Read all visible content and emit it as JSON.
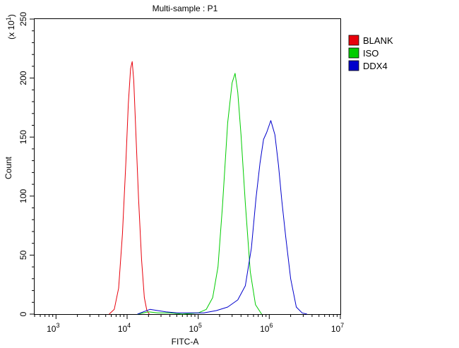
{
  "chart_data": {
    "type": "line",
    "title": "Multi-sample : P1",
    "xlabel": "FITC-A",
    "ylabel": "Count",
    "y_multiplier_label": "(x 10^1)",
    "x_scale": "log",
    "xlim": [
      500,
      10000000
    ],
    "ylim": [
      0,
      250
    ],
    "x_ticks": [
      {
        "value": 1000,
        "base": "10",
        "exp": "3"
      },
      {
        "value": 10000,
        "base": "10",
        "exp": "4"
      },
      {
        "value": 100000,
        "base": "10",
        "exp": "5"
      },
      {
        "value": 1000000,
        "base": "10",
        "exp": "6"
      },
      {
        "value": 10000000,
        "base": "10",
        "exp": "7"
      }
    ],
    "y_ticks": [
      0,
      50,
      100,
      150,
      200,
      250
    ],
    "grid": false,
    "legend_position": "right",
    "series": [
      {
        "name": "BLANK",
        "color": "#e8000b",
        "x": [
          5600,
          6600,
          7600,
          8600,
          9600,
          10400,
          11200,
          11800,
          12400,
          13200,
          14500,
          16000,
          17500,
          19000,
          20500
        ],
        "y": [
          0,
          4,
          22,
          68,
          128,
          178,
          208,
          214,
          198,
          158,
          98,
          46,
          14,
          3,
          0
        ]
      },
      {
        "name": "ISO",
        "color": "#00cc00",
        "x": [
          14000,
          20000,
          27000,
          40000,
          60000,
          100000,
          130000,
          160000,
          190000,
          220000,
          260000,
          300000,
          330000,
          360000,
          400000,
          460000,
          540000,
          640000,
          780000
        ],
        "y": [
          0,
          2,
          1,
          1,
          0,
          1,
          4,
          14,
          40,
          92,
          162,
          196,
          204,
          188,
          152,
          94,
          36,
          8,
          0
        ]
      },
      {
        "name": "DDX4",
        "color": "#0000cc",
        "x": [
          14000,
          17000,
          21000,
          27000,
          35000,
          50000,
          80000,
          120000,
          180000,
          260000,
          360000,
          460000,
          560000,
          650000,
          740000,
          830000,
          920000,
          1050000,
          1200000,
          1350000,
          1500000,
          1700000,
          2000000,
          2400000,
          2900000,
          3400000
        ],
        "y": [
          0,
          2,
          4,
          3,
          2,
          1,
          1,
          1,
          3,
          6,
          12,
          24,
          56,
          98,
          128,
          148,
          154,
          164,
          152,
          126,
          96,
          66,
          30,
          6,
          1,
          0
        ]
      }
    ]
  }
}
